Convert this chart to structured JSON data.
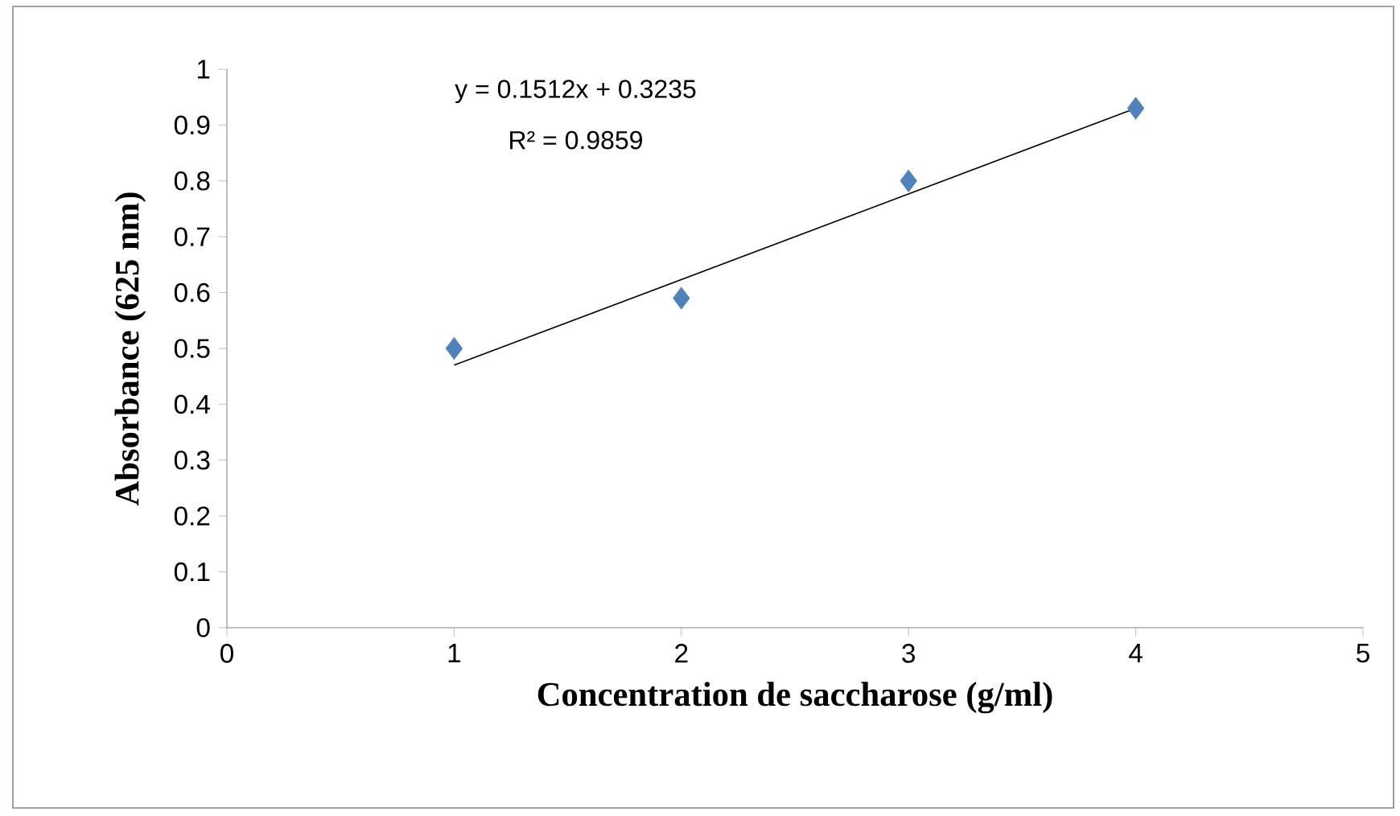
{
  "chart_data": {
    "type": "scatter",
    "xlabel": "Concentration de saccharose (g/ml)",
    "ylabel": "Absorbance (625 nm)",
    "annotations": [
      "y = 0.1512x + 0.3235",
      "R² = 0.9859"
    ],
    "series": [
      {
        "color": "#4f81bd",
        "marker": "diamond",
        "x": [
          1,
          2,
          3,
          4
        ],
        "values": [
          0.5,
          0.59,
          0.8,
          0.93
        ]
      },
      {
        "type": "line",
        "color": "#000000",
        "marker": "none",
        "x": [
          1,
          4
        ],
        "values": [
          0.47,
          0.93
        ]
      }
    ],
    "xlim": [
      0,
      5
    ],
    "ylim": [
      0,
      1
    ],
    "xticks": [
      0,
      1,
      2,
      3,
      4,
      5
    ],
    "yticks": [
      0,
      0.1,
      0.2,
      0.3,
      0.4,
      0.5,
      0.6,
      0.7,
      0.8,
      0.9,
      1
    ],
    "grid": false
  }
}
